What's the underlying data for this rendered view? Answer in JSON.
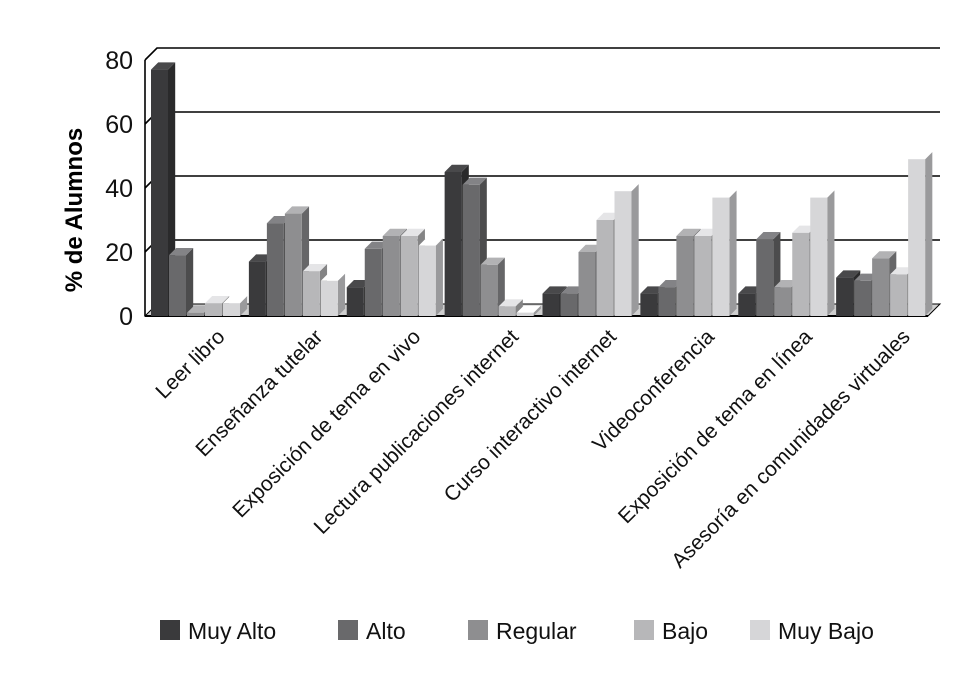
{
  "chart_data": {
    "type": "bar",
    "ylabel": "% de Alumnos",
    "xlabel": "",
    "ylim": [
      0,
      80
    ],
    "yticks": [
      0,
      20,
      40,
      60,
      80
    ],
    "grid": true,
    "legend_position": "bottom",
    "categories": [
      "Leer libro",
      "Enseñanza tutelar",
      "Exposición de tema en vivo",
      "Lectura publicaciones internet",
      "Curso interactivo internet",
      "Videoconferencia",
      "Exposición de tema en línea",
      "Asesoría en comunidades virtuales"
    ],
    "series": [
      {
        "name": "Muy Alto",
        "color": "#3a3a3c",
        "values": [
          77,
          17,
          9,
          45,
          7,
          7,
          7,
          12
        ]
      },
      {
        "name": "Alto",
        "color": "#69696b",
        "values": [
          19,
          29,
          21,
          41,
          7,
          9,
          24,
          11
        ]
      },
      {
        "name": "Regular",
        "color": "#8e8e90",
        "values": [
          1,
          32,
          25,
          16,
          20,
          25,
          9,
          18
        ]
      },
      {
        "name": "Bajo",
        "color": "#b7b7b9",
        "values": [
          4,
          14,
          25,
          3,
          30,
          25,
          26,
          13
        ]
      },
      {
        "name": "Muy Bajo",
        "color": "#d6d6d8",
        "values": [
          4,
          11,
          22,
          1,
          39,
          37,
          37,
          49
        ]
      }
    ]
  }
}
